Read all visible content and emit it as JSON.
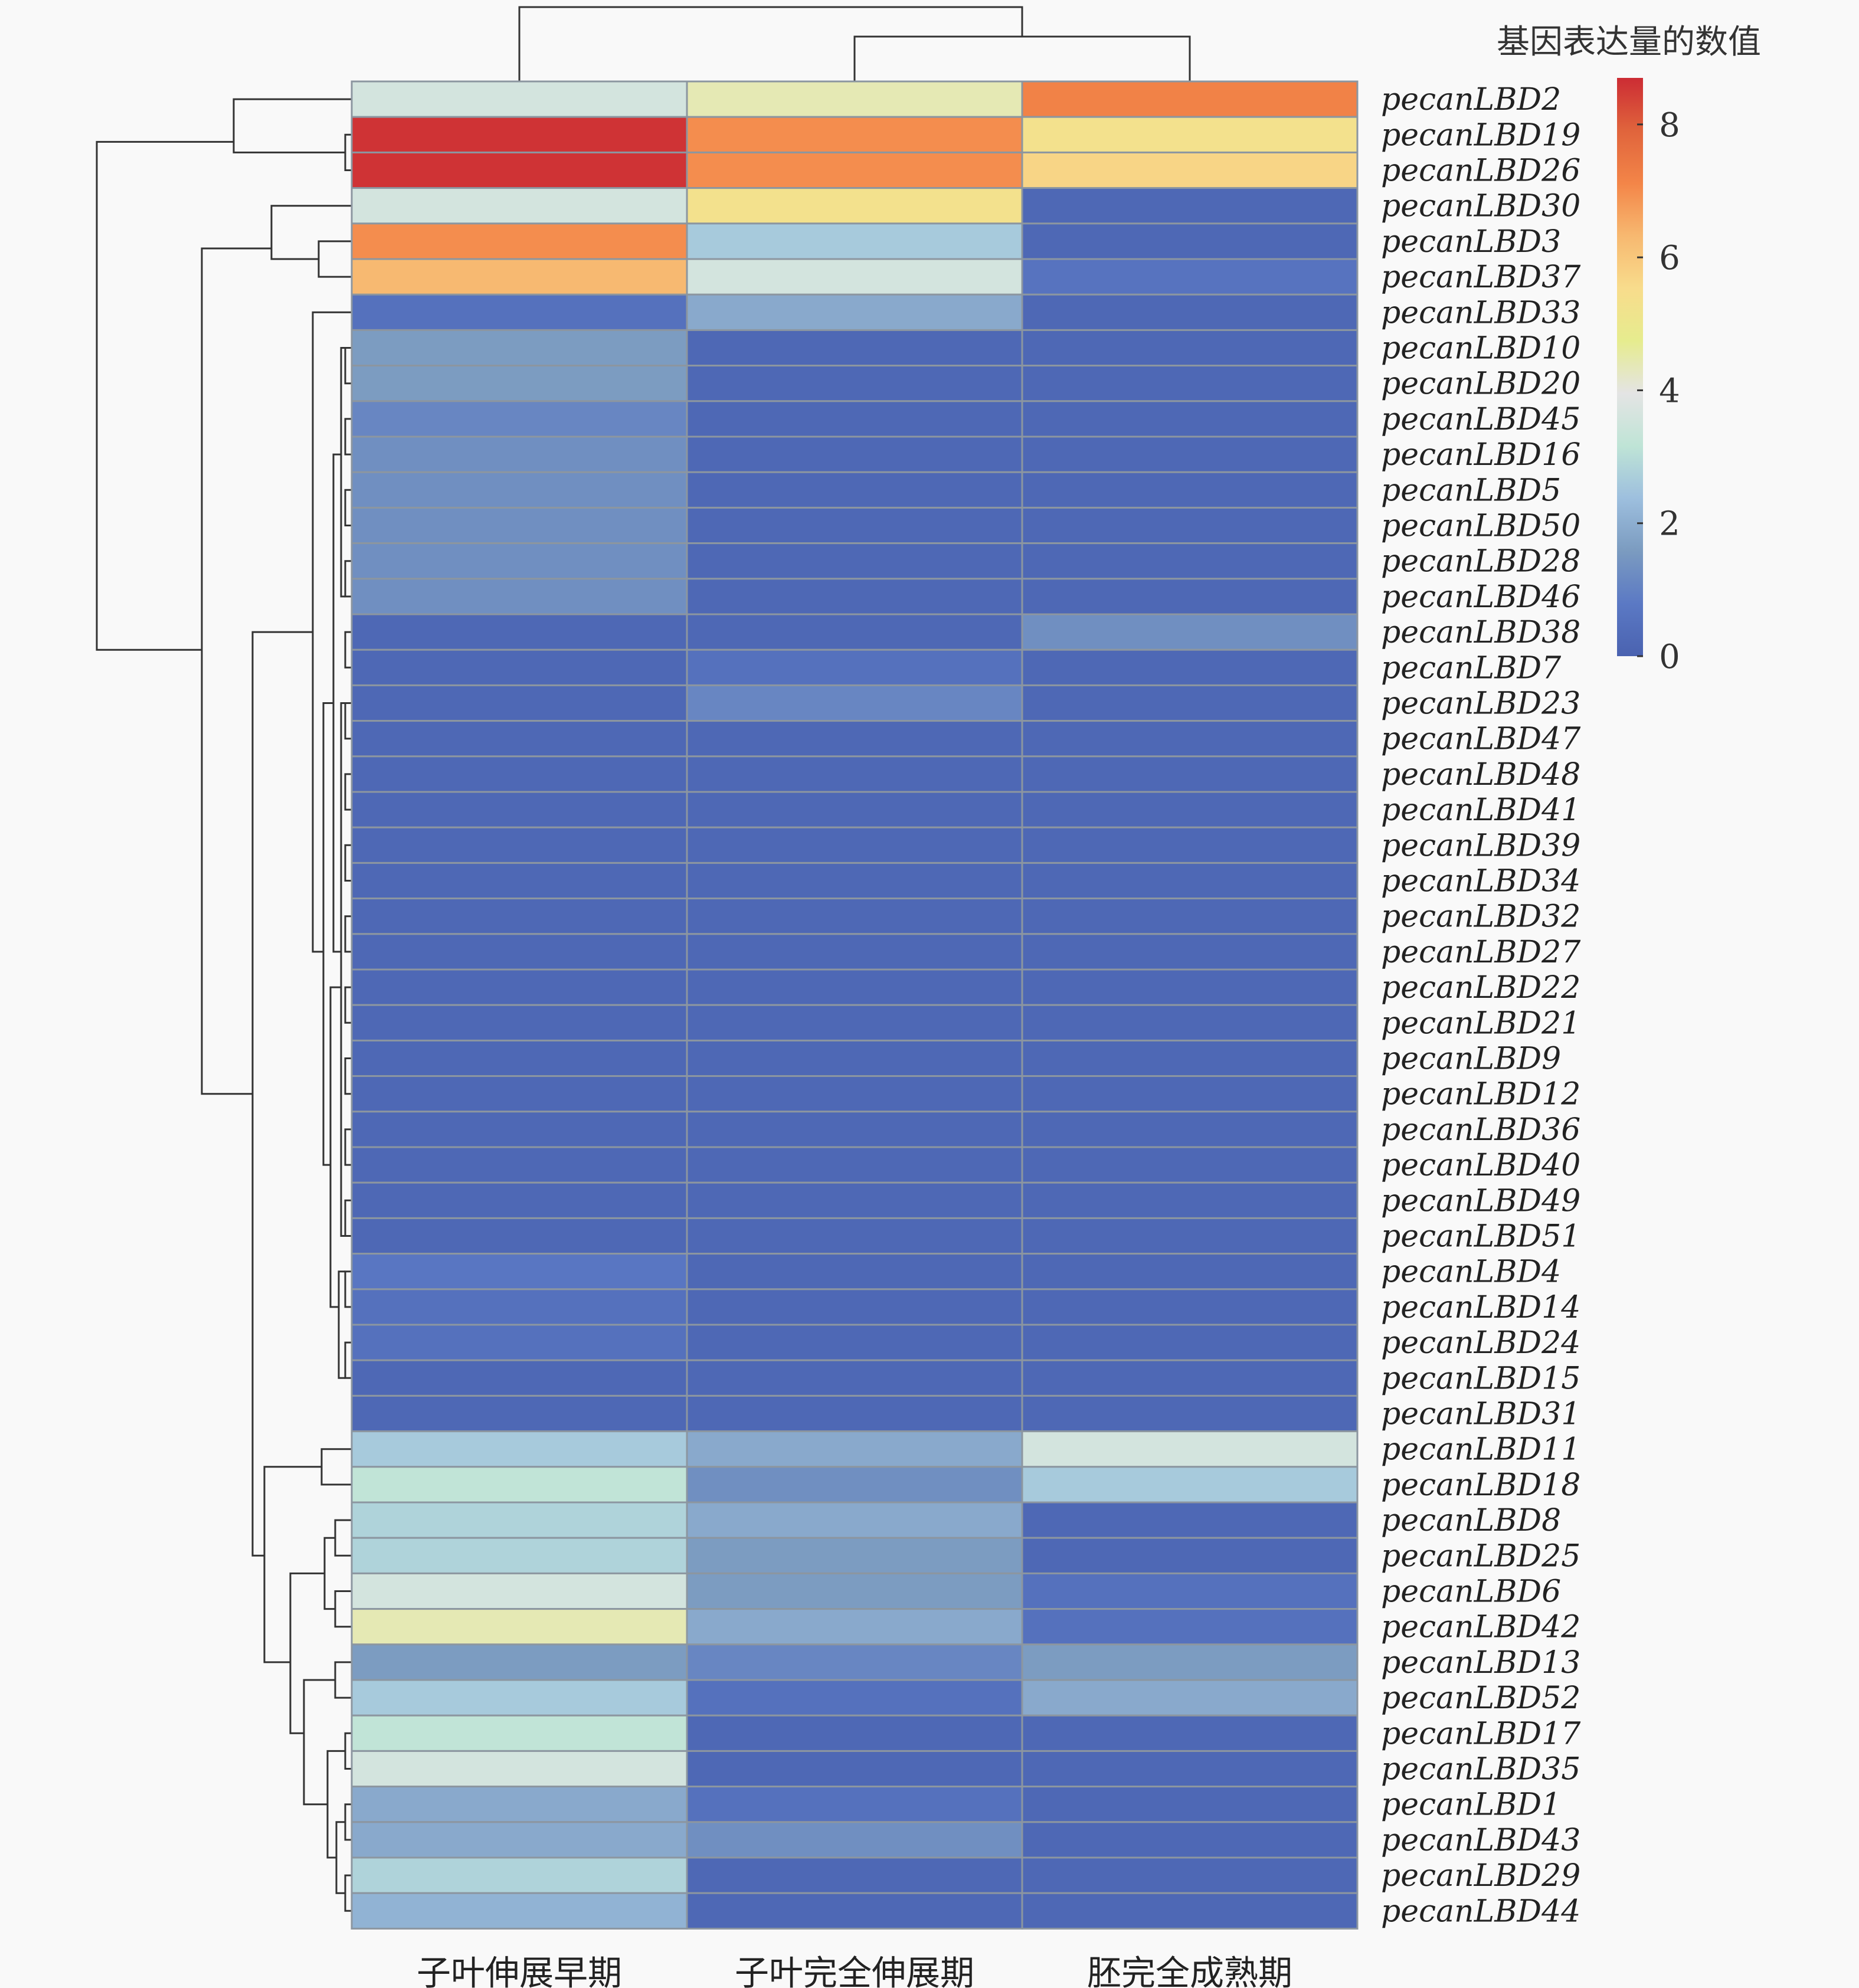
{
  "chart_data": {
    "type": "heatmap",
    "title": "",
    "xlabel": "",
    "ylabel": "",
    "columns": [
      "子叶伸展早期",
      "子叶完全伸展期",
      "胚完全成熟期"
    ],
    "rows": [
      "pecanLBD2",
      "pecanLBD19",
      "pecanLBD26",
      "pecanLBD30",
      "pecanLBD3",
      "pecanLBD37",
      "pecanLBD33",
      "pecanLBD10",
      "pecanLBD20",
      "pecanLBD45",
      "pecanLBD16",
      "pecanLBD5",
      "pecanLBD50",
      "pecanLBD28",
      "pecanLBD46",
      "pecanLBD38",
      "pecanLBD7",
      "pecanLBD23",
      "pecanLBD47",
      "pecanLBD48",
      "pecanLBD41",
      "pecanLBD39",
      "pecanLBD34",
      "pecanLBD32",
      "pecanLBD27",
      "pecanLBD22",
      "pecanLBD21",
      "pecanLBD9",
      "pecanLBD12",
      "pecanLBD36",
      "pecanLBD40",
      "pecanLBD49",
      "pecanLBD51",
      "pecanLBD4",
      "pecanLBD14",
      "pecanLBD24",
      "pecanLBD15",
      "pecanLBD31",
      "pecanLBD11",
      "pecanLBD18",
      "pecanLBD8",
      "pecanLBD25",
      "pecanLBD6",
      "pecanLBD42",
      "pecanLBD13",
      "pecanLBD52",
      "pecanLBD17",
      "pecanLBD35",
      "pecanLBD1",
      "pecanLBD43",
      "pecanLBD29",
      "pecanLBD44"
    ],
    "values": [
      [
        3.6,
        4.4,
        7.2
      ],
      [
        8.6,
        7.0,
        5.3
      ],
      [
        8.6,
        7.0,
        5.7
      ],
      [
        3.6,
        5.3,
        0.2
      ],
      [
        7.0,
        2.6,
        0.2
      ],
      [
        6.3,
        3.6,
        0.6
      ],
      [
        0.5,
        1.9,
        0.2
      ],
      [
        1.6,
        0.2,
        0.2
      ],
      [
        1.6,
        0.2,
        0.2
      ],
      [
        1.1,
        0.2,
        0.2
      ],
      [
        1.3,
        0.2,
        0.2
      ],
      [
        1.3,
        0.2,
        0.2
      ],
      [
        1.3,
        0.2,
        0.2
      ],
      [
        1.3,
        0.2,
        0.2
      ],
      [
        1.3,
        0.2,
        0.2
      ],
      [
        0.2,
        0.2,
        1.3
      ],
      [
        0.2,
        0.5,
        0.2
      ],
      [
        0.2,
        1.1,
        0.2
      ],
      [
        0.2,
        0.2,
        0.2
      ],
      [
        0.2,
        0.2,
        0.2
      ],
      [
        0.2,
        0.2,
        0.2
      ],
      [
        0.2,
        0.2,
        0.2
      ],
      [
        0.2,
        0.2,
        0.2
      ],
      [
        0.2,
        0.2,
        0.2
      ],
      [
        0.2,
        0.2,
        0.2
      ],
      [
        0.2,
        0.2,
        0.2
      ],
      [
        0.2,
        0.2,
        0.2
      ],
      [
        0.2,
        0.2,
        0.2
      ],
      [
        0.2,
        0.2,
        0.2
      ],
      [
        0.2,
        0.2,
        0.2
      ],
      [
        0.2,
        0.2,
        0.2
      ],
      [
        0.2,
        0.2,
        0.2
      ],
      [
        0.2,
        0.2,
        0.2
      ],
      [
        0.7,
        0.2,
        0.2
      ],
      [
        0.5,
        0.2,
        0.2
      ],
      [
        0.5,
        0.2,
        0.2
      ],
      [
        0.2,
        0.2,
        0.2
      ],
      [
        0.2,
        0.2,
        0.2
      ],
      [
        2.6,
        1.9,
        3.6
      ],
      [
        3.2,
        1.3,
        2.6
      ],
      [
        2.8,
        1.9,
        0.2
      ],
      [
        2.8,
        1.6,
        0.2
      ],
      [
        3.6,
        1.6,
        0.5
      ],
      [
        4.4,
        1.9,
        0.5
      ],
      [
        1.6,
        1.1,
        1.6
      ],
      [
        2.6,
        0.5,
        1.9
      ],
      [
        3.2,
        0.2,
        0.2
      ],
      [
        3.6,
        0.2,
        0.2
      ],
      [
        1.9,
        0.5,
        0.2
      ],
      [
        1.9,
        1.3,
        0.2
      ],
      [
        2.8,
        0.2,
        0.2
      ],
      [
        2.1,
        0.2,
        0.2
      ]
    ],
    "value_range": [
      0,
      8.7
    ],
    "colorbar": {
      "title": "基因表达量的数值",
      "ticks": [
        0,
        2,
        4,
        6,
        8
      ]
    },
    "colormap": [
      "#4a62b0",
      "#5b79c4",
      "#7b9bc0",
      "#9dbfde",
      "#bfe4d6",
      "#e4e4e4",
      "#e6ec8e",
      "#f8dc8c",
      "#f7b870",
      "#f38548",
      "#e0643c",
      "#cc2c34"
    ],
    "row_dendrogram": true,
    "column_dendrogram": true
  }
}
